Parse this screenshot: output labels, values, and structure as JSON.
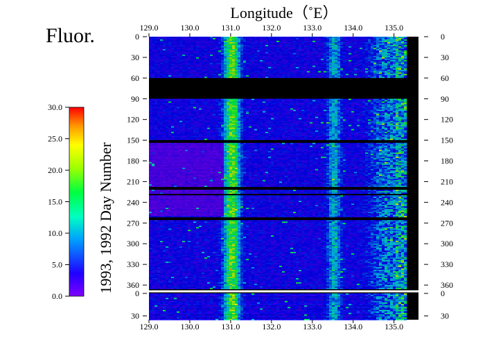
{
  "chart_data": {
    "type": "heatmap",
    "title": "Fluor.",
    "xlabel": "Longitude（˚E）",
    "ylabel": "1993,   1992  Day Number",
    "xlim": [
      129.0,
      135.6
    ],
    "x_ticks": [
      "129.0",
      "130.0",
      "131.0",
      "132.0",
      "133.0",
      "134.0",
      "135.0"
    ],
    "x_tick_values": [
      129.0,
      130.0,
      131.0,
      132.0,
      133.0,
      134.0,
      135.0
    ],
    "y_segments": [
      {
        "year": "1992",
        "range": [
          0,
          366
        ],
        "ticks": [
          "0",
          "30",
          "60",
          "90",
          "120",
          "150",
          "180",
          "210",
          "240",
          "270",
          "300",
          "330",
          "360"
        ],
        "tick_values": [
          0,
          30,
          60,
          90,
          120,
          150,
          180,
          210,
          240,
          270,
          300,
          330,
          360
        ]
      },
      {
        "year": "1993",
        "range": [
          0,
          35
        ],
        "ticks": [
          "0",
          "30"
        ],
        "tick_values": [
          0,
          30
        ]
      }
    ],
    "colorbar": {
      "range": [
        0.0,
        30.0
      ],
      "labels": [
        "30.0",
        "25.0",
        "20.0",
        "15.0",
        "10.0",
        "5.0",
        "0.0"
      ],
      "label_values": [
        30,
        25,
        20,
        15,
        10,
        5,
        0
      ],
      "colormap": [
        "#8000ff",
        "#0000ff",
        "#00c8ff",
        "#00ff40",
        "#c8ff00",
        "#ffff00",
        "#ff9900",
        "#ff0000"
      ]
    },
    "no_data_days_1992": [
      [
        60,
        88
      ],
      [
        150,
        153
      ],
      [
        218,
        220
      ],
      [
        227,
        229
      ],
      [
        262,
        264
      ]
    ],
    "no_data_east_of": 135.3,
    "high_bands_longitude": [
      131.0,
      133.5,
      134.8
    ],
    "grid": false,
    "legend": "left colorbar"
  }
}
